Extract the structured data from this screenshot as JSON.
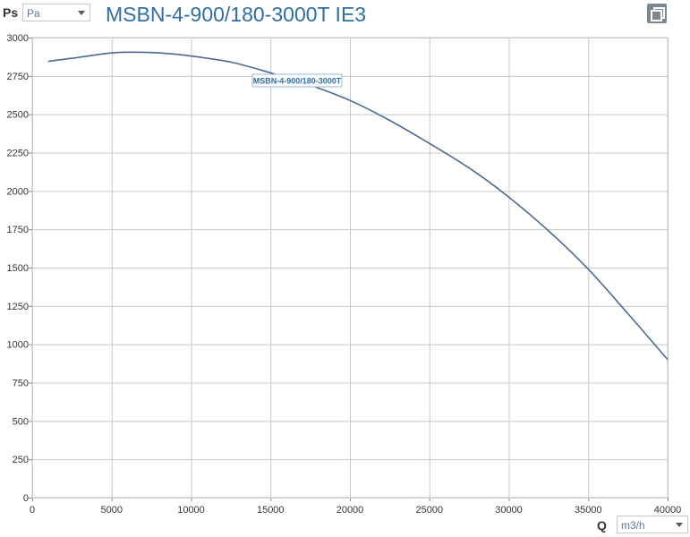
{
  "header": {
    "y_quantity": "Ps",
    "y_unit": "Pa",
    "title": "MSBN-4-900/180-3000T IE3"
  },
  "footer": {
    "x_quantity": "Q",
    "x_unit": "m3/h"
  },
  "toolbar": {
    "copy_icon": "copy-icon"
  },
  "colors": {
    "curve": "#4e6a8e",
    "grid": "#c8c8c8",
    "title": "#2f6ea6"
  },
  "chart_data": {
    "type": "line",
    "title": "MSBN-4-900/180-3000T IE3",
    "xlabel": "Q",
    "ylabel": "Ps",
    "xlim": [
      0,
      40000
    ],
    "ylim": [
      0,
      3000
    ],
    "x_ticks": [
      0,
      5000,
      10000,
      15000,
      20000,
      25000,
      30000,
      35000,
      40000
    ],
    "y_ticks": [
      0,
      250,
      500,
      750,
      1000,
      1250,
      1500,
      1750,
      2000,
      2250,
      2500,
      2750,
      3000
    ],
    "grid": true,
    "series": [
      {
        "name": "MSBN-4-900/180-3000T",
        "x": [
          1000,
          2500,
          5000,
          6500,
          8000,
          10000,
          12500,
          15000,
          17500,
          20000,
          22500,
          25000,
          27500,
          30000,
          32500,
          35000,
          37500,
          40000
        ],
        "y": [
          2845,
          2865,
          2900,
          2905,
          2900,
          2880,
          2840,
          2770,
          2690,
          2590,
          2460,
          2310,
          2150,
          1960,
          1740,
          1490,
          1200,
          900
        ]
      }
    ]
  }
}
